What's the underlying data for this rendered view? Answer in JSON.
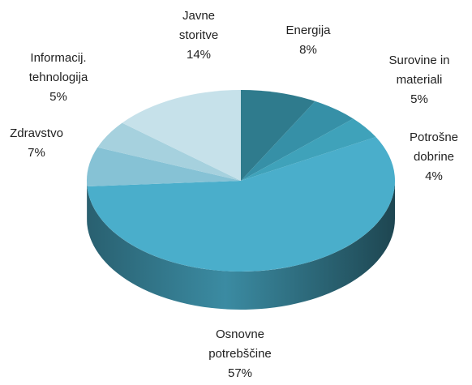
{
  "chart_data": {
    "type": "pie",
    "categories": [
      "Energija",
      "Surovine in\nmateriali",
      "Potrošne\ndobrine",
      "Osnovne\npotrebščine",
      "Zdravstvo",
      "Informacij.\ntehnologija",
      "Javne\nstoritve"
    ],
    "values": [
      8,
      5,
      4,
      57,
      7,
      5,
      14
    ],
    "value_labels": [
      "8%",
      "5%",
      "4%",
      "57%",
      "7%",
      "5%",
      "14%"
    ],
    "colors": [
      "#2f7b8d",
      "#3690a7",
      "#3fa2ba",
      "#4aaecb",
      "#86c2d5",
      "#a6d1de",
      "#c6e1ea"
    ]
  }
}
